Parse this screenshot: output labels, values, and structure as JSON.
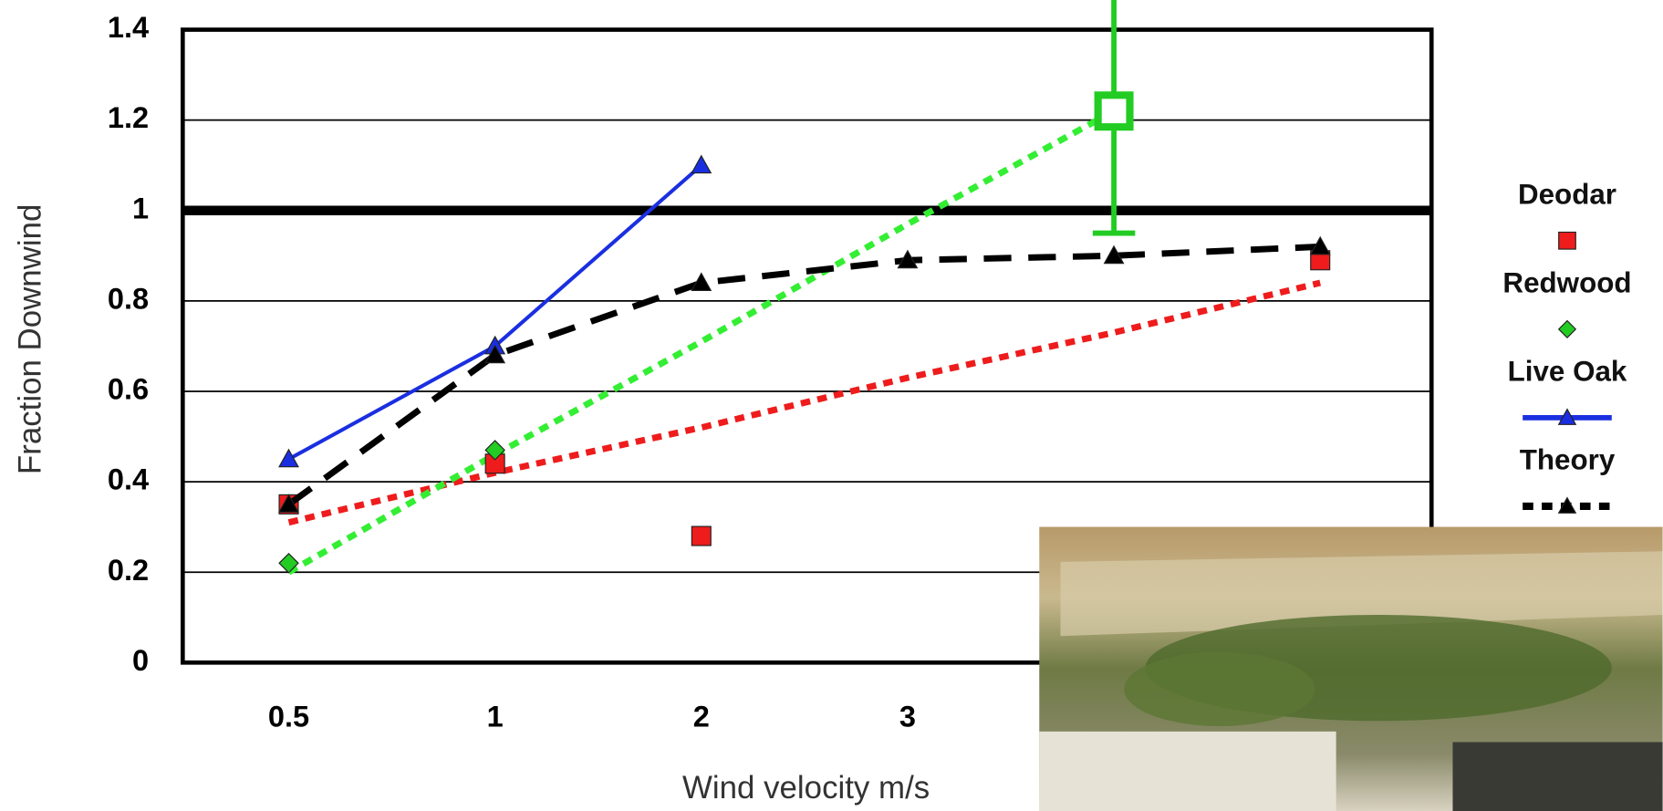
{
  "chart_data": {
    "type": "line",
    "xlabel": "Wind velocity m/s",
    "ylabel": "Fraction Downwind",
    "categories": [
      "0.5",
      "1",
      "2",
      "3",
      null,
      null
    ],
    "ylim": [
      0,
      1.4
    ],
    "yticks": [
      0,
      0.2,
      0.4,
      0.6,
      0.8,
      1,
      1.2,
      1.4
    ],
    "grid": true,
    "reference_line": 1,
    "legend": "right",
    "series": [
      {
        "name": "Deodar",
        "color": "#ee1c1c",
        "line": "none",
        "marker": "square",
        "values": [
          0.35,
          0.44,
          0.28,
          null,
          null,
          0.89
        ]
      },
      {
        "name": "Redwood",
        "color": "#22cc22",
        "line": "none",
        "marker": "diamond",
        "values": [
          0.22,
          0.47,
          null,
          null,
          1.22,
          null
        ],
        "errors": [
          null,
          null,
          null,
          null,
          0.27,
          null
        ]
      },
      {
        "name": "Live Oak",
        "color": "#1a2fe0",
        "line": "solid",
        "marker": "triangle",
        "values": [
          0.45,
          0.7,
          1.1,
          null,
          null,
          null
        ]
      },
      {
        "name": "Theory",
        "color": "#000000",
        "line": "dashed",
        "marker": "triangle",
        "values": [
          0.35,
          0.68,
          0.84,
          0.89,
          0.9,
          0.92
        ]
      }
    ],
    "trendlines": [
      {
        "color": "#ee1c1c",
        "values": [
          0.31,
          0.42,
          0.52,
          0.63,
          0.73,
          0.84
        ]
      },
      {
        "color": "#33ee33",
        "values": [
          0.2,
          0.46,
          0.71,
          0.97,
          1.22,
          null
        ]
      }
    ]
  }
}
